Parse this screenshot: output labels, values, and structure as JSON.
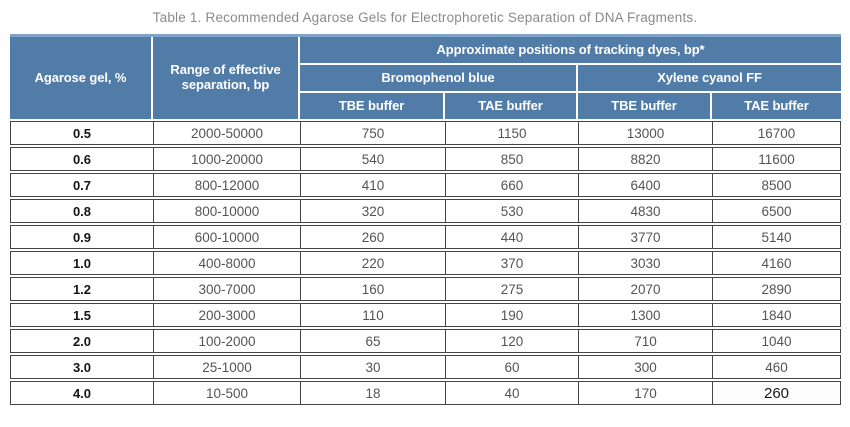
{
  "title": "Table 1. Recommended Agarose Gels for Electrophoretic Separation of DNA Fragments.",
  "table": {
    "header": {
      "col1": "Agarose gel, %",
      "col2": "Range of effective separation, bp",
      "group_title": "Approximate positions of tracking dyes, bp*",
      "subgroups": [
        {
          "label": "Bromophenol blue",
          "columns": [
            "TBE buffer",
            "TAE buffer"
          ]
        },
        {
          "label": "Xylene cyanol FF",
          "columns": [
            "TBE buffer",
            "TAE buffer"
          ]
        }
      ]
    },
    "rows": [
      [
        "0.5",
        "2000-50000",
        "750",
        "1150",
        "13000",
        "16700"
      ],
      [
        "0.6",
        "1000-20000",
        "540",
        "850",
        "8820",
        "11600"
      ],
      [
        "0.7",
        "800-12000",
        "410",
        "660",
        "6400",
        "8500"
      ],
      [
        "0.8",
        "800-10000",
        "320",
        "530",
        "4830",
        "6500"
      ],
      [
        "0.9",
        "600-10000",
        "260",
        "440",
        "3770",
        "5140"
      ],
      [
        "1.0",
        "400-8000",
        "220",
        "370",
        "3030",
        "4160"
      ],
      [
        "1.2",
        "300-7000",
        "160",
        "275",
        "2070",
        "2890"
      ],
      [
        "1.5",
        "200-3000",
        "110",
        "190",
        "1300",
        "1840"
      ],
      [
        "2.0",
        "100-2000",
        "65",
        "120",
        "710",
        "1040"
      ],
      [
        "3.0",
        "25-1000",
        "30",
        "60",
        "300",
        "460"
      ],
      [
        "4.0",
        "10-500",
        "18",
        "40",
        "170",
        "260"
      ]
    ],
    "emphasized_cell": {
      "row_index": 10,
      "col_index": 5
    }
  },
  "colors": {
    "header_blue": "#527ca8",
    "header_top_strip": "#7fa3c7",
    "border_dark": "#454545",
    "data_text": "#545454",
    "title_text": "#8a8a8a"
  }
}
